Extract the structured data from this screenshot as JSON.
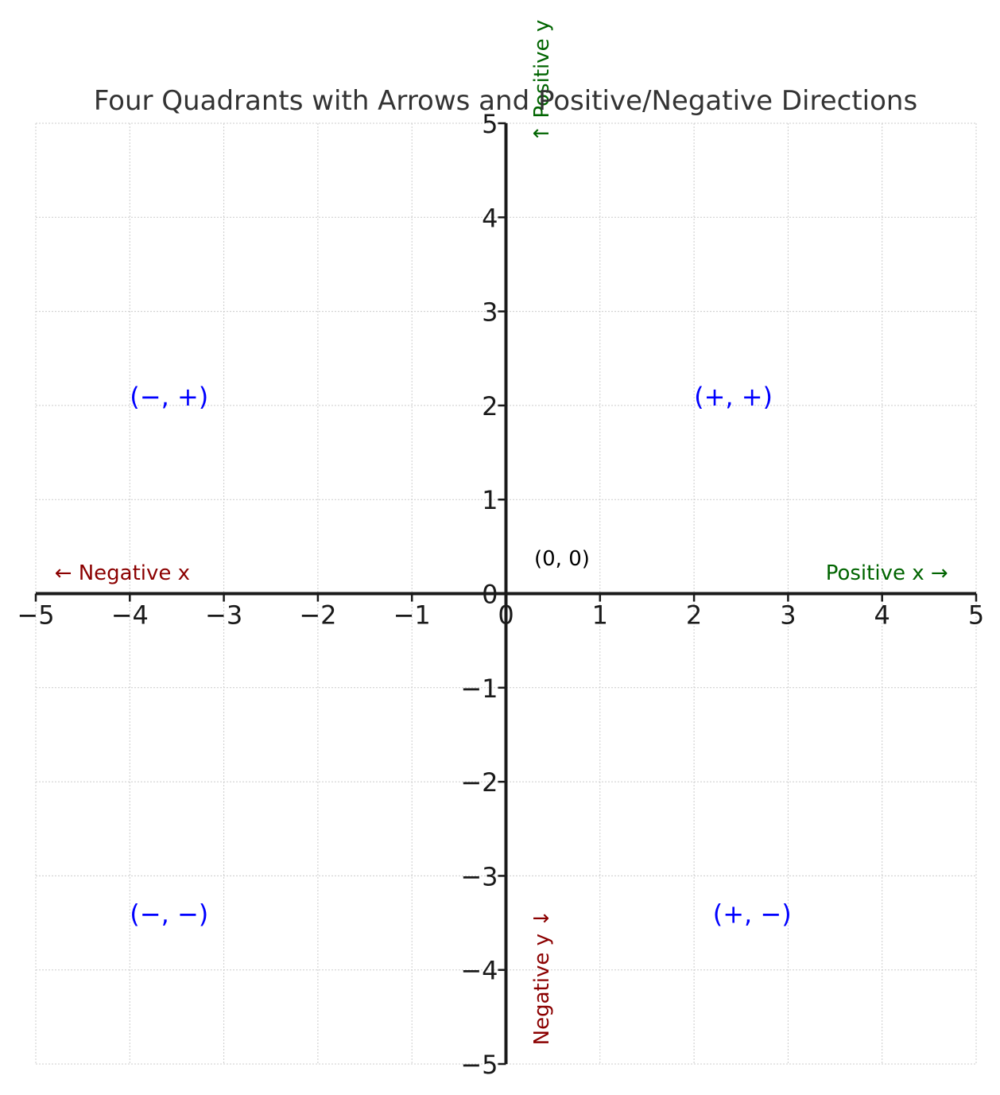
{
  "chart_data": {
    "type": "scatter",
    "title": "Four Quadrants with Arrows and Positive/Negative Directions",
    "xlabel": "",
    "ylabel": "",
    "xlim": [
      -5,
      5
    ],
    "ylim": [
      -5,
      5
    ],
    "grid": true,
    "x_ticks": [
      -5,
      -4,
      -3,
      -2,
      -1,
      0,
      1,
      2,
      3,
      4,
      5
    ],
    "x_tick_labels": [
      "−5",
      "−4",
      "−3",
      "−2",
      "−1",
      "0",
      "1",
      "2",
      "3",
      "4",
      "5"
    ],
    "y_ticks": [
      -5,
      -4,
      -3,
      -2,
      -1,
      0,
      1,
      2,
      3,
      4,
      5
    ],
    "y_tick_labels": [
      "−5",
      "−4",
      "−3",
      "−2",
      "−1",
      "0",
      "1",
      "2",
      "3",
      "4",
      "5"
    ],
    "quadrant_labels": [
      {
        "name": "quadrant-label-q2",
        "text": "(−, +)",
        "x": -4,
        "y": 2
      },
      {
        "name": "quadrant-label-q1",
        "text": "(+, +)",
        "x": 2,
        "y": 2
      },
      {
        "name": "quadrant-label-q3",
        "text": "(−, −)",
        "x": -4,
        "y": -3.5
      },
      {
        "name": "quadrant-label-q4",
        "text": "(+, −)",
        "x": 2.2,
        "y": -3.5
      }
    ],
    "annotations": [
      {
        "name": "origin-label",
        "text": "(0, 0)",
        "x": 0.3,
        "y": 0.3,
        "kind": "origin"
      },
      {
        "name": "positive-x-label",
        "text": "Positive x →",
        "x": 3.4,
        "y": 0.15,
        "kind": "positive"
      },
      {
        "name": "negative-x-label",
        "text": "← Negative x",
        "x": -4.8,
        "y": 0.15,
        "kind": "negative"
      },
      {
        "name": "positive-y-label",
        "text": "↑ Positive y",
        "x": 0.3,
        "y": 4.8,
        "kind": "positive",
        "rotate": true
      },
      {
        "name": "negative-y-label",
        "text": "Negative y ↓",
        "x": 0.3,
        "y": -4.8,
        "kind": "negative",
        "rotate": true
      }
    ],
    "colors": {
      "axes": "#1a1a1a",
      "grid": "#cccccc",
      "quadrant_text": "#0000ff",
      "positive_text": "#006400",
      "negative_text": "#8b0000",
      "title_text": "#333333",
      "tick_text": "#1a1a1a",
      "origin_text": "#000000"
    }
  }
}
